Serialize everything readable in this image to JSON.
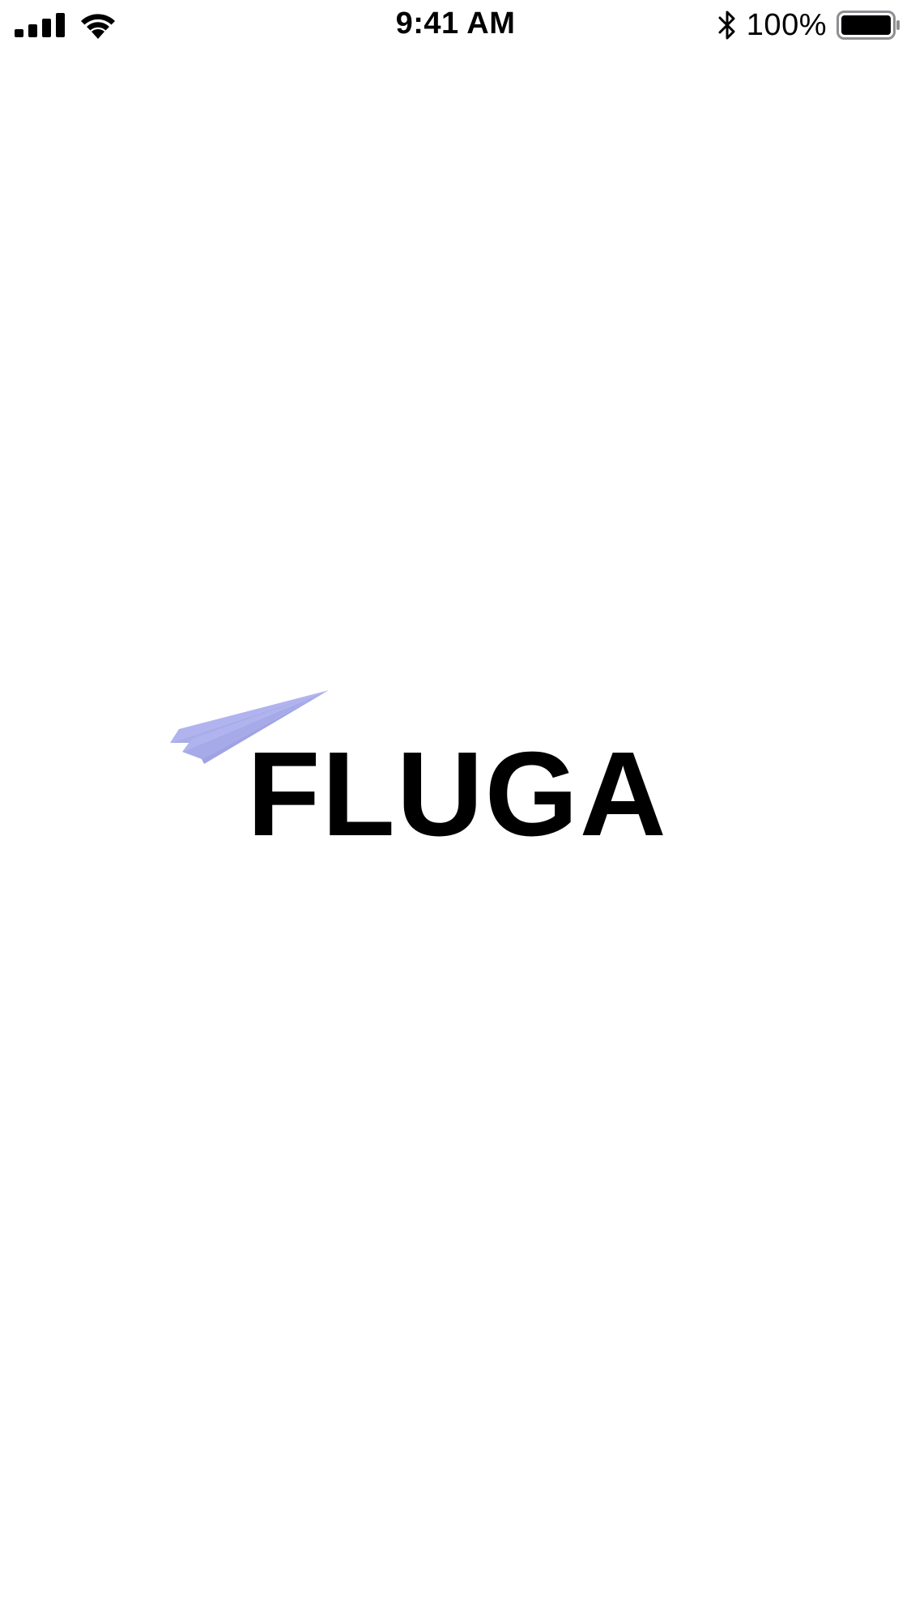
{
  "status_bar": {
    "time": "9:41 AM",
    "battery_percent": "100%"
  },
  "logo": {
    "wordmark": "FLUGA",
    "plane_color": "#b0b3ee"
  },
  "icons": {
    "signal": "cellular-signal-icon",
    "wifi": "wifi-icon",
    "bluetooth": "bluetooth-icon",
    "battery": "battery-icon",
    "plane": "paper-plane-icon"
  }
}
